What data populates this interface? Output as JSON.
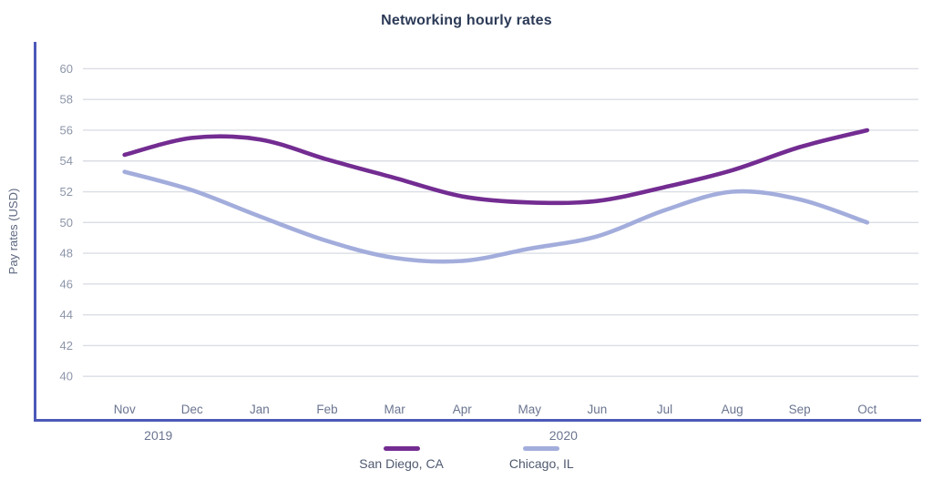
{
  "title": "Networking hourly rates",
  "y_axis": {
    "label": "Pay rates (USD)",
    "ticks": [
      60,
      58,
      56,
      54,
      52,
      50,
      48,
      46,
      44,
      42,
      40
    ]
  },
  "x_axis": {
    "months": [
      "Nov",
      "Dec",
      "Jan",
      "Feb",
      "Mar",
      "Apr",
      "May",
      "Jun",
      "Jul",
      "Aug",
      "Sep",
      "Oct"
    ],
    "year_labels": [
      {
        "label": "2019",
        "from_month": "Nov",
        "to_month": "Dec"
      },
      {
        "label": "2020",
        "from_month": "Jan",
        "to_month": "Oct"
      }
    ]
  },
  "legend": {
    "items": [
      {
        "label": "San Diego, CA",
        "color": "#732c91"
      },
      {
        "label": "Chicago, IL",
        "color": "#a3addc"
      }
    ]
  },
  "colors": {
    "axis_line": "#4c59b8",
    "gridline": "#dadde4",
    "tick_label": "#8c95a8",
    "month_label": "#6b7590",
    "year_label": "#6b7590",
    "axis_title": "#5d6880",
    "title": "#2c3a57"
  },
  "chart_data": {
    "type": "line",
    "x": [
      "Nov",
      "Dec",
      "Jan",
      "Feb",
      "Mar",
      "Apr",
      "May",
      "Jun",
      "Jul",
      "Aug",
      "Sep",
      "Oct"
    ],
    "series": [
      {
        "name": "San Diego, CA",
        "color": "#732c91",
        "values": [
          54.4,
          55.5,
          55.4,
          54.1,
          52.9,
          51.7,
          51.3,
          51.4,
          52.3,
          53.4,
          54.9,
          56.0
        ]
      },
      {
        "name": "Chicago, IL",
        "color": "#a3addc",
        "values": [
          53.3,
          52.1,
          50.4,
          48.8,
          47.7,
          47.5,
          48.3,
          49.1,
          50.8,
          52.0,
          51.5,
          50.0
        ]
      }
    ],
    "title": "Networking hourly rates",
    "xlabel": "",
    "ylabel": "Pay rates (USD)",
    "ylim": [
      40,
      60
    ],
    "y_tick_step": 2,
    "grid": true,
    "line_style": "smooth-spline",
    "legend_position": "bottom"
  }
}
